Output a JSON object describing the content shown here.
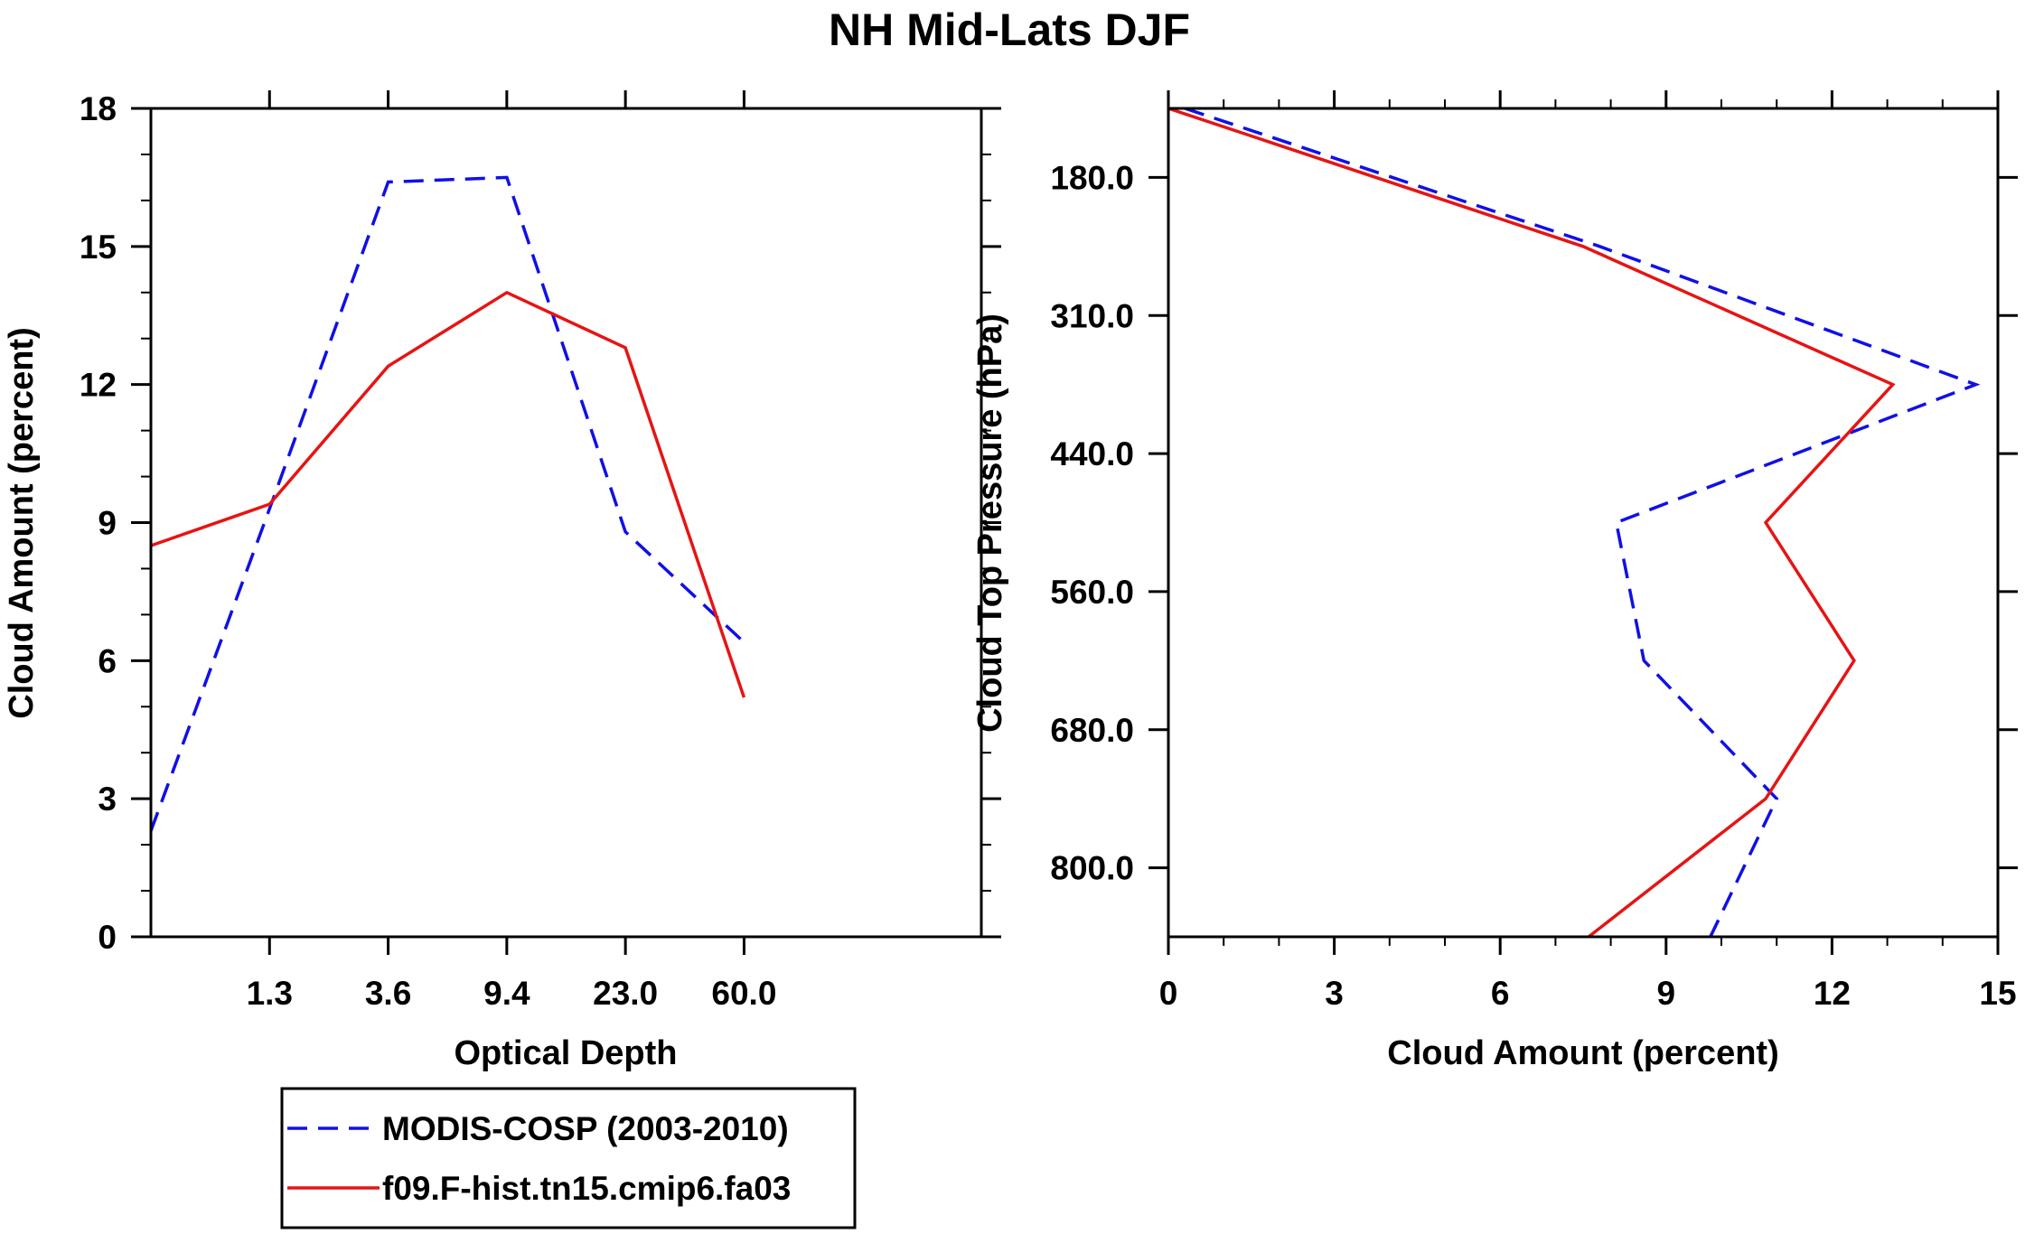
{
  "figure_title": "NH Mid-Lats DJF",
  "colors": {
    "modis": "#1010e6",
    "model": "#e61414"
  },
  "chart_data": [
    {
      "type": "line",
      "title": "NH Mid-Lats DJF",
      "xlabel": "Optical Depth",
      "ylabel": "Cloud Amount (percent)",
      "x_tick_labels": [
        "1.3",
        "3.6",
        "9.4",
        "23.0",
        "60.0"
      ],
      "x_bins": 7,
      "ylim": [
        0,
        18
      ],
      "y_ticks": [
        0,
        3,
        6,
        9,
        12,
        15,
        18
      ],
      "y_tick_labels": [
        "0",
        "3",
        "6",
        "9",
        "12",
        "15",
        "18"
      ],
      "series": [
        {
          "name": "MODIS-COSP (2003-2010)",
          "style": "dashed",
          "color": "#1010e6",
          "values": [
            2.3,
            9.3,
            16.4,
            16.5,
            8.8,
            6.4
          ]
        },
        {
          "name": "f09.F-hist.tn15.cmip6.fa03",
          "style": "solid",
          "color": "#e61414",
          "values": [
            8.5,
            9.4,
            12.4,
            14.0,
            12.8,
            5.2
          ]
        }
      ]
    },
    {
      "type": "line",
      "xlabel": "Cloud Amount (percent)",
      "ylabel": "Cloud Top Pressure (hPa)",
      "xlim": [
        0,
        15
      ],
      "x_ticks": [
        0,
        3,
        6,
        9,
        12,
        15
      ],
      "x_tick_labels": [
        "0",
        "3",
        "6",
        "9",
        "12",
        "15"
      ],
      "y_tick_labels": [
        "180.0",
        "310.0",
        "440.0",
        "560.0",
        "680.0",
        "800.0"
      ],
      "y_levels": 12,
      "series": [
        {
          "name": "MODIS-COSP (2003-2010)",
          "style": "dashed",
          "color": "#1010e6",
          "values": [
            0.3,
            7.8,
            14.6,
            8.1,
            8.6,
            11.0,
            9.8
          ]
        },
        {
          "name": "f09.F-hist.tn15.cmip6.fa03",
          "style": "solid",
          "color": "#e61414",
          "values": [
            0,
            7.5,
            13.1,
            10.8,
            12.4,
            10.8,
            7.6
          ]
        }
      ]
    }
  ],
  "legend": {
    "entries": [
      {
        "label": "MODIS-COSP (2003-2010)",
        "style": "dashed",
        "color": "#1010e6"
      },
      {
        "label": "f09.F-hist.tn15.cmip6.fa03",
        "style": "solid",
        "color": "#e61414"
      }
    ]
  }
}
